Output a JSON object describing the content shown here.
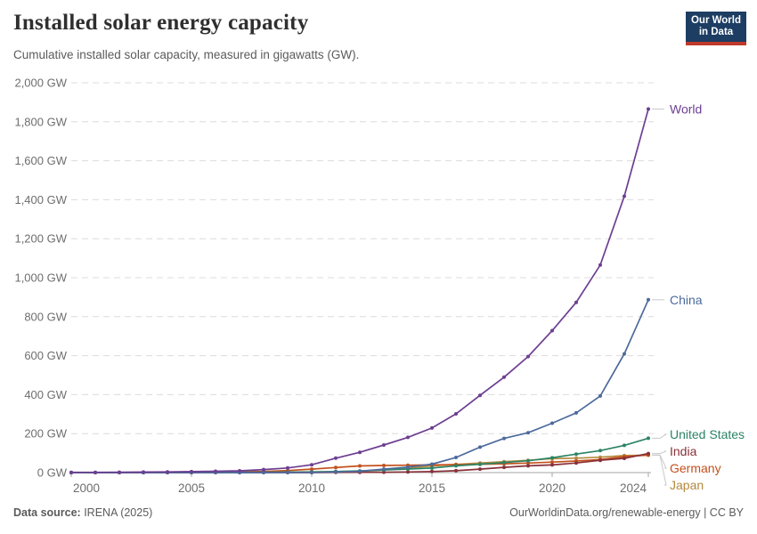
{
  "logo": {
    "line1": "Our World",
    "line2": "in Data",
    "bg": "#1D3D63",
    "accent": "#C0392B"
  },
  "chart_data": {
    "type": "line",
    "title": "Installed solar energy capacity",
    "subtitle": "Cumulative installed solar capacity, measured in gigawatts (GW).",
    "x": [
      2000,
      2001,
      2002,
      2003,
      2004,
      2005,
      2006,
      2007,
      2008,
      2009,
      2010,
      2011,
      2012,
      2013,
      2014,
      2015,
      2016,
      2017,
      2018,
      2019,
      2020,
      2021,
      2022,
      2023,
      2024
    ],
    "series": [
      {
        "name": "World",
        "color": "#6D3E91",
        "values": [
          1.2,
          1.5,
          1.9,
          2.6,
          3.7,
          5.1,
          6.7,
          9.2,
          15.5,
          23.6,
          40.3,
          73.9,
          104.3,
          141.5,
          180.8,
          228.9,
          301.2,
          396.3,
          489.5,
          595.5,
          728.4,
          873.4,
          1065.0,
          1418.0,
          1865.1
        ]
      },
      {
        "name": "China",
        "color": "#4C6A9C",
        "values": [
          0.03,
          0.05,
          0.1,
          0.1,
          0.1,
          0.1,
          0.2,
          0.2,
          0.3,
          0.4,
          1.0,
          3.1,
          6.7,
          17.8,
          28.4,
          43.5,
          77.8,
          130.8,
          175.3,
          204.7,
          253.6,
          306.4,
          393.0,
          609.3,
          886.7
        ]
      },
      {
        "name": "United States",
        "color": "#2C8465",
        "values": [
          0.1,
          0.2,
          0.2,
          0.3,
          0.4,
          0.6,
          0.8,
          1.2,
          1.8,
          2.5,
          3.4,
          5.6,
          8.6,
          13.7,
          18.3,
          23.4,
          34.7,
          43.1,
          51.5,
          60.7,
          75.6,
          95.2,
          113.0,
          139.5,
          176.2
        ]
      },
      {
        "name": "India",
        "color": "#883039",
        "values": [
          0.0,
          0.0,
          0.0,
          0.0,
          0.0,
          0.0,
          0.0,
          0.1,
          0.1,
          0.1,
          0.1,
          0.7,
          1.2,
          1.9,
          3.1,
          5.4,
          9.5,
          17.9,
          26.9,
          34.8,
          39.2,
          49.3,
          63.1,
          73.1,
          97.9
        ]
      },
      {
        "name": "Germany",
        "color": "#C4511D",
        "values": [
          0.1,
          0.2,
          0.3,
          0.4,
          1.1,
          2.1,
          2.9,
          4.2,
          6.1,
          10.6,
          18.0,
          25.9,
          34.1,
          36.7,
          37.9,
          39.2,
          40.7,
          42.3,
          45.2,
          48.9,
          53.7,
          59.4,
          66.6,
          81.7,
          90.1
        ]
      },
      {
        "name": "Japan",
        "color": "#B58A41",
        "values": [
          0.3,
          0.5,
          0.6,
          0.9,
          1.1,
          1.4,
          1.7,
          1.9,
          2.1,
          2.6,
          3.6,
          4.9,
          6.6,
          13.6,
          23.3,
          34.2,
          42.0,
          49.5,
          56.2,
          63.2,
          71.9,
          74.2,
          78.8,
          87.1,
          89.1
        ]
      }
    ],
    "ylim": [
      0,
      2000
    ],
    "y_tick_step": 200,
    "y_tick_suffix": " GW",
    "x_ticks": [
      2000,
      2005,
      2010,
      2015,
      2020,
      2024
    ],
    "grid": "horizontal-dashed",
    "legend": "end-of-line-labels"
  },
  "footer": {
    "source_label": "Data source:",
    "source_value": " IRENA (2025)",
    "credit": "OurWorldinData.org/renewable-energy | CC BY"
  }
}
